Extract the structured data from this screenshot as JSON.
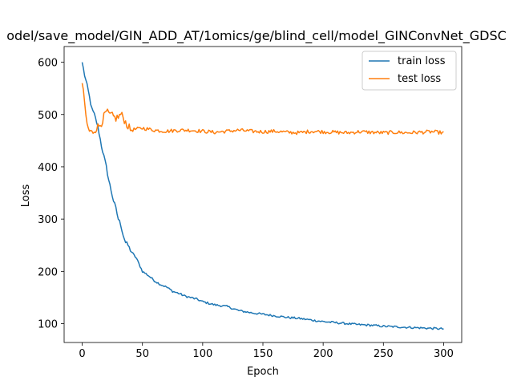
{
  "chart_data": {
    "type": "line",
    "title": "odel/save_model/GIN_ADD_AT/1omics/ge/blind_cell/model_GINConvNet_GDSC",
    "xlabel": "Epoch",
    "ylabel": "Loss",
    "xlim": [
      -15,
      315
    ],
    "ylim": [
      64,
      630
    ],
    "xticks": [
      0,
      50,
      100,
      150,
      200,
      250,
      300
    ],
    "yticks": [
      100,
      200,
      300,
      400,
      500,
      600
    ],
    "grid": false,
    "legend_position": "top-right",
    "series": [
      {
        "name": "train loss",
        "color": "#1f77b4",
        "anchors": [
          [
            0,
            600
          ],
          [
            2,
            575
          ],
          [
            5,
            545
          ],
          [
            8,
            510
          ],
          [
            10,
            500
          ],
          [
            12,
            485
          ],
          [
            14,
            465
          ],
          [
            16,
            440
          ],
          [
            18,
            420
          ],
          [
            20,
            400
          ],
          [
            22,
            375
          ],
          [
            24,
            355
          ],
          [
            26,
            335
          ],
          [
            28,
            320
          ],
          [
            30,
            300
          ],
          [
            32,
            290
          ],
          [
            34,
            270
          ],
          [
            36,
            255
          ],
          [
            38,
            250
          ],
          [
            40,
            240
          ],
          [
            45,
            225
          ],
          [
            50,
            200
          ],
          [
            55,
            192
          ],
          [
            60,
            182
          ],
          [
            65,
            175
          ],
          [
            70,
            170
          ],
          [
            75,
            162
          ],
          [
            80,
            158
          ],
          [
            85,
            153
          ],
          [
            90,
            150
          ],
          [
            95,
            147
          ],
          [
            100,
            142
          ],
          [
            110,
            136
          ],
          [
            120,
            133
          ],
          [
            130,
            125
          ],
          [
            140,
            121
          ],
          [
            150,
            118
          ],
          [
            160,
            115
          ],
          [
            170,
            112
          ],
          [
            180,
            110
          ],
          [
            190,
            107
          ],
          [
            200,
            104
          ],
          [
            210,
            102
          ],
          [
            220,
            100
          ],
          [
            230,
            98
          ],
          [
            240,
            97
          ],
          [
            250,
            95
          ],
          [
            260,
            94
          ],
          [
            270,
            93
          ],
          [
            280,
            92
          ],
          [
            290,
            91
          ],
          [
            300,
            90
          ]
        ]
      },
      {
        "name": "test loss",
        "color": "#ff7f0e",
        "anchors": [
          [
            0,
            560
          ],
          [
            2,
            520
          ],
          [
            4,
            480
          ],
          [
            6,
            468
          ],
          [
            8,
            465
          ],
          [
            10,
            470
          ],
          [
            12,
            475
          ],
          [
            14,
            478
          ],
          [
            16,
            485
          ],
          [
            18,
            495
          ],
          [
            20,
            505
          ],
          [
            22,
            500
          ],
          [
            24,
            498
          ],
          [
            26,
            495
          ],
          [
            28,
            493
          ],
          [
            30,
            495
          ],
          [
            32,
            500
          ],
          [
            34,
            495
          ],
          [
            36,
            485
          ],
          [
            38,
            478
          ],
          [
            40,
            470
          ],
          [
            45,
            472
          ],
          [
            50,
            474
          ],
          [
            60,
            470
          ],
          [
            70,
            468
          ],
          [
            80,
            470
          ],
          [
            90,
            470
          ],
          [
            100,
            468
          ],
          [
            110,
            466
          ],
          [
            120,
            468
          ],
          [
            130,
            470
          ],
          [
            140,
            468
          ],
          [
            150,
            467
          ],
          [
            160,
            468
          ],
          [
            170,
            466
          ],
          [
            180,
            465
          ],
          [
            190,
            468
          ],
          [
            200,
            467
          ],
          [
            210,
            466
          ],
          [
            220,
            465
          ],
          [
            230,
            467
          ],
          [
            240,
            466
          ],
          [
            250,
            465
          ],
          [
            260,
            466
          ],
          [
            270,
            465
          ],
          [
            280,
            466
          ],
          [
            290,
            467
          ],
          [
            300,
            465
          ]
        ]
      }
    ]
  }
}
